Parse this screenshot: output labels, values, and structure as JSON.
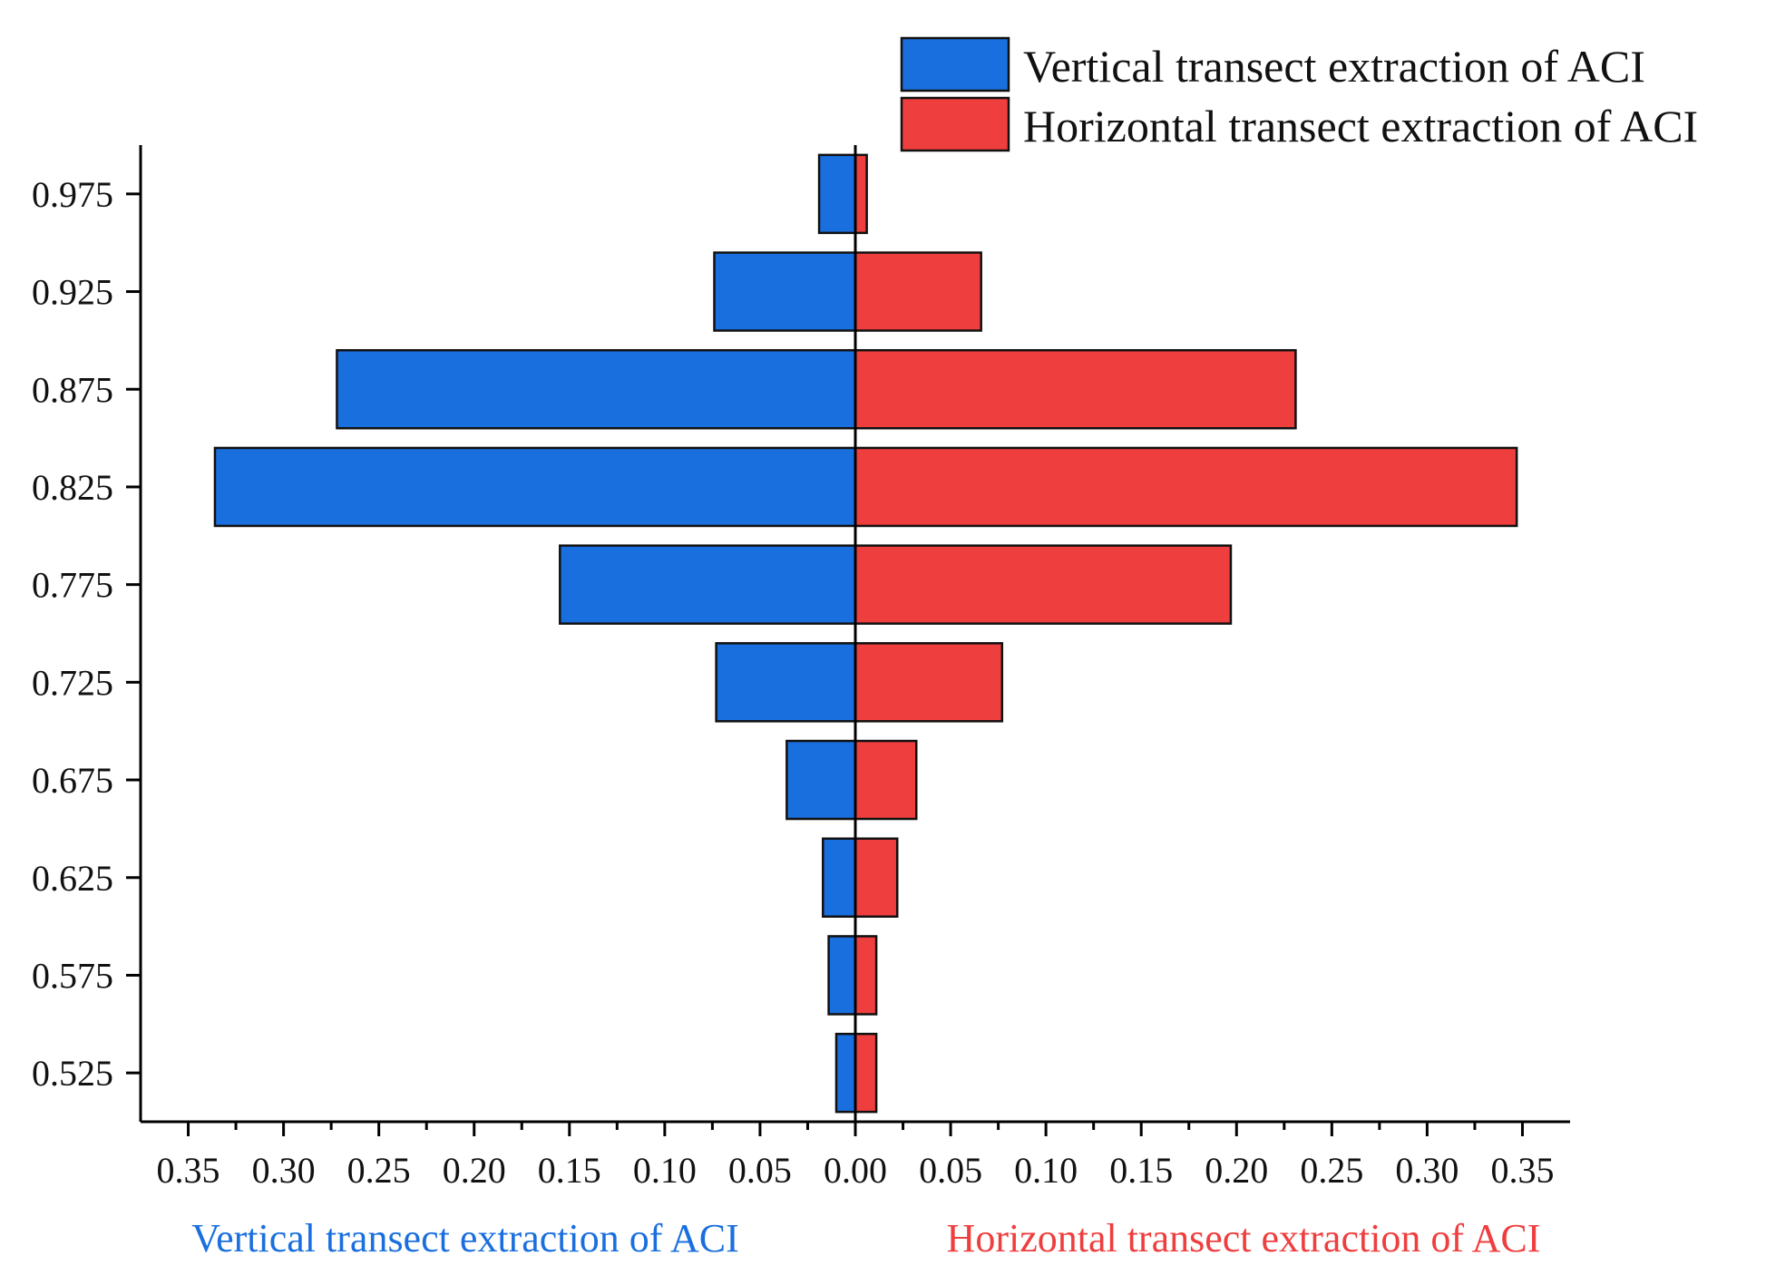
{
  "chart_data": {
    "type": "bar",
    "orientation": "horizontal-butterfly",
    "categories": [
      "0.525",
      "0.575",
      "0.625",
      "0.675",
      "0.725",
      "0.775",
      "0.825",
      "0.875",
      "0.925",
      "0.975"
    ],
    "series": [
      {
        "name": "Vertical transect extraction of ACI",
        "side": "left",
        "color": "#1a6fde",
        "values": [
          0.01,
          0.014,
          0.017,
          0.036,
          0.073,
          0.155,
          0.336,
          0.272,
          0.074,
          0.019
        ]
      },
      {
        "name": "Horizontal transect extraction of ACI",
        "side": "right",
        "color": "#ef3e3e",
        "values": [
          0.011,
          0.011,
          0.022,
          0.032,
          0.077,
          0.197,
          0.347,
          0.231,
          0.066,
          0.006
        ]
      }
    ],
    "xlim": [
      -0.375,
      0.375
    ],
    "x_ticks": [
      -0.35,
      -0.3,
      -0.25,
      -0.2,
      -0.15,
      -0.1,
      -0.05,
      0.0,
      0.05,
      0.1,
      0.15,
      0.2,
      0.25,
      0.3,
      0.35
    ],
    "x_tick_labels": [
      "0.35",
      "0.30",
      "0.25",
      "0.20",
      "0.15",
      "0.10",
      "0.05",
      "0.00",
      "0.05",
      "0.10",
      "0.15",
      "0.20",
      "0.25",
      "0.30",
      "0.35"
    ],
    "ylim": [
      0.5,
      1.0
    ],
    "y_ticks": [
      0.525,
      0.575,
      0.625,
      0.675,
      0.725,
      0.775,
      0.825,
      0.875,
      0.925,
      0.975
    ],
    "y_tick_labels": [
      "0.525",
      "0.575",
      "0.625",
      "0.675",
      "0.725",
      "0.775",
      "0.825",
      "0.875",
      "0.925",
      "0.975"
    ],
    "xlabel_left": "Vertical transect extraction of ACI",
    "xlabel_right": "Horizontal transect extraction of ACI",
    "xlabel_left_color": "#1a6fde",
    "xlabel_right_color": "#ef3e3e",
    "legend": [
      "Vertical transect extraction of ACI",
      "Horizontal transect extraction of ACI"
    ],
    "legend_position": "top-right",
    "grid": false
  }
}
